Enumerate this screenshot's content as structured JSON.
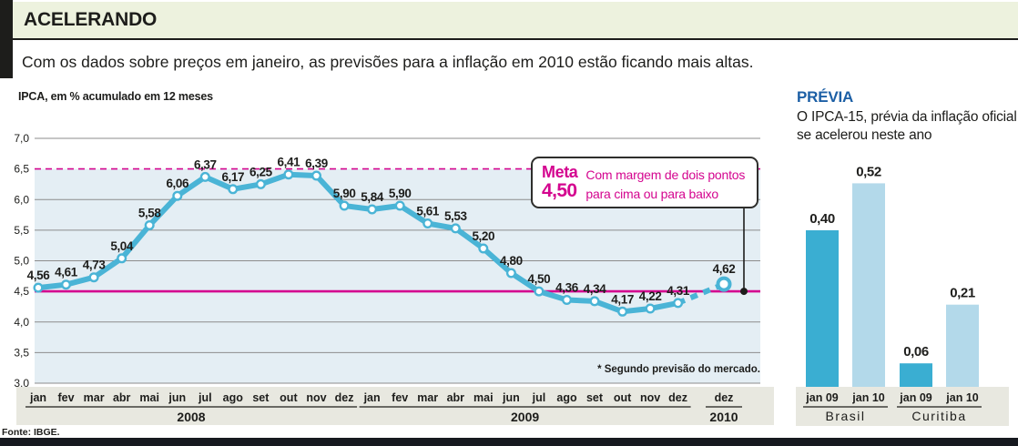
{
  "header": {
    "title": "ACELERANDO",
    "subtitle": "Com os dados sobre preços em janeiro, as previsões para a inflação em 2010 estão ficando mais altas."
  },
  "meta_box": {
    "label": "Meta",
    "value": "4,50",
    "note_lines": [
      "Com margem de dois pontos",
      "para cima ou para baixo"
    ]
  },
  "footnote": "* Segundo previsão do mercado.",
  "source": "Fonte: IBGE.",
  "colors": {
    "magenta": "#d4058f",
    "line_blue": "#4ab4d6",
    "band_fill": "#e4eef4",
    "bar_dark": "#3aaed2",
    "bar_light": "#b3d9ea",
    "heading_blue": "#1c5fa5",
    "header_band": "#edf2de",
    "axis_band": "#e8e8e0",
    "footer_bar": "#16191f",
    "grid": "#8c8c8c",
    "ink": "#1d1d1b"
  },
  "chart_data": [
    {
      "type": "line",
      "title": "IPCA, em % acumulado em 12 meses",
      "ylim": [
        3.0,
        7.0
      ],
      "y_tick_step": 0.5,
      "y_tick_labels": [
        "7,0",
        "6,5",
        "6,0",
        "5,5",
        "5,0",
        "4,5",
        "4,0",
        "3,5",
        "3,0"
      ],
      "grid": true,
      "x_groups": [
        {
          "year": "2008",
          "months": [
            "jan",
            "fev",
            "mar",
            "abr",
            "mai",
            "jun",
            "jul",
            "ago",
            "set",
            "out",
            "nov",
            "dez"
          ]
        },
        {
          "year": "2009",
          "months": [
            "jan",
            "fev",
            "mar",
            "abr",
            "mai",
            "jun",
            "jul",
            "ago",
            "set",
            "out",
            "nov",
            "dez"
          ]
        }
      ],
      "values": [
        4.56,
        4.61,
        4.73,
        5.04,
        5.58,
        6.06,
        6.37,
        6.17,
        6.25,
        6.41,
        6.39,
        5.9,
        5.84,
        5.9,
        5.61,
        5.53,
        5.2,
        4.8,
        4.5,
        4.36,
        4.34,
        4.17,
        4.22,
        4.31
      ],
      "point_labels": [
        "4,56",
        "4,61",
        "4,73",
        "5,04",
        "5,58",
        "6,06",
        "6,37",
        "6,17",
        "6,25",
        "6,41",
        "6,39",
        "5,90",
        "5,84",
        "5,90",
        "5,61",
        "5,53",
        "5,20",
        "4,80",
        "4,50",
        "4,36",
        "4,34",
        "4,17",
        "4,22",
        "4,31"
      ],
      "forecast": {
        "month": "dez",
        "year": "2010",
        "value": 4.62,
        "label": "4,62",
        "style": "dashed"
      },
      "target_line": {
        "value": 4.5,
        "style": "solid"
      },
      "upper_margin_line": {
        "value": 6.5,
        "style": "dashed"
      },
      "band_fill_below": 6.5
    },
    {
      "type": "bar",
      "title": "PRÉVIA",
      "subtitle": "O IPCA-15, prévia da inflação oficial, se acelerou neste ano",
      "groups": [
        {
          "name": "Brasil",
          "bars": [
            {
              "label": "jan 09",
              "value": 0.4,
              "display": "0,40"
            },
            {
              "label": "jan 10",
              "value": 0.52,
              "display": "0,52"
            }
          ]
        },
        {
          "name": "Curitiba",
          "bars": [
            {
              "label": "jan 09",
              "value": 0.06,
              "display": "0,06"
            },
            {
              "label": "jan 10",
              "value": 0.21,
              "display": "0,21"
            }
          ]
        }
      ]
    }
  ]
}
